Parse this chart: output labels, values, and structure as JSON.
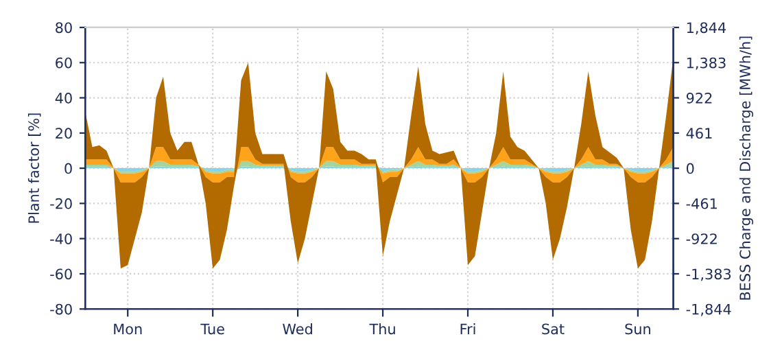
{
  "chart_data": {
    "type": "area",
    "stacked": true,
    "ylabel": "Plant factor [%]",
    "y2label": "BESS Charge and Discharge [MWh/h]",
    "categories": [
      null,
      null,
      null,
      null,
      null,
      null,
      "Mon",
      null,
      null,
      null,
      null,
      null,
      null,
      null,
      null,
      null,
      null,
      null,
      "Tue",
      null,
      null,
      null,
      null,
      null,
      null,
      null,
      null,
      null,
      null,
      null,
      "Wed",
      null,
      null,
      null,
      null,
      null,
      null,
      null,
      null,
      null,
      null,
      null,
      "Thu",
      null,
      null,
      null,
      null,
      null,
      null,
      null,
      null,
      null,
      null,
      null,
      "Fri",
      null,
      null,
      null,
      null,
      null,
      null,
      null,
      null,
      null,
      null,
      null,
      "Sat",
      null,
      null,
      null,
      null,
      null,
      null,
      null,
      null,
      null,
      null,
      null,
      "Sun",
      null,
      null,
      null,
      null,
      null
    ],
    "series": [
      {
        "color": "#87d3e8",
        "values": [
          0.5,
          0.5,
          0.5,
          0.5,
          0,
          -2,
          -2,
          -2,
          -1,
          0,
          1,
          1,
          0.5,
          0.5,
          0.5,
          0.5,
          0.5,
          -1,
          -2,
          -2,
          -1,
          -1,
          1,
          1,
          0.5,
          0.5,
          0.5,
          0.5,
          0.5,
          -1,
          -2,
          -2,
          -1,
          0,
          1,
          1,
          0.5,
          0.5,
          0.5,
          0.5,
          0.5,
          0.5,
          -2,
          -1,
          -1,
          0,
          0.5,
          1,
          0.5,
          0.5,
          0.5,
          0.5,
          0.5,
          0,
          -2,
          -2,
          -1,
          0,
          0.5,
          1,
          0.5,
          0.5,
          0.5,
          0.5,
          0,
          -1,
          -2,
          -2,
          -1,
          0,
          0.5,
          1,
          0.5,
          0.5,
          0.5,
          0.5,
          0,
          -1,
          -2,
          -2,
          -1,
          0,
          0.5,
          1
        ]
      },
      {
        "color": "#a6d49a",
        "values": [
          1.5,
          1.5,
          1.5,
          1.5,
          0,
          -1,
          -1,
          -1,
          -1,
          0,
          3,
          3,
          1.5,
          1.5,
          1.5,
          1.5,
          0.5,
          -1,
          -1,
          -1,
          -1,
          -1,
          3,
          3,
          1.5,
          1,
          1,
          1,
          1,
          -1,
          -1,
          -1,
          -1,
          0,
          3,
          3,
          1.5,
          1.5,
          1.5,
          1,
          1,
          1,
          -1,
          -1,
          -1,
          0,
          1.5,
          3,
          1.5,
          1.5,
          1,
          1,
          1.5,
          0,
          -1,
          -1,
          -1,
          0,
          1.5,
          3,
          1.5,
          1.5,
          1.5,
          1,
          0,
          -1,
          -1,
          -1,
          -1,
          0,
          1.5,
          3,
          1.5,
          1.5,
          1,
          1,
          0,
          -1,
          -1,
          -1,
          -1,
          0,
          1.5,
          3
        ]
      },
      {
        "color": "#ffa31a",
        "values": [
          3,
          3,
          3,
          3,
          0,
          -5,
          -5,
          -5,
          -3,
          0,
          8,
          8,
          3,
          3,
          3,
          3,
          1,
          -3,
          -5,
          -5,
          -3,
          -3,
          8,
          8,
          3,
          1,
          1,
          1,
          1,
          -3,
          -5,
          -5,
          -3,
          0,
          8,
          8,
          3,
          3,
          3,
          1,
          1,
          1,
          -5,
          -3,
          -3,
          0,
          3,
          8,
          3,
          3,
          1,
          1,
          3,
          0,
          -5,
          -5,
          -3,
          0,
          3,
          8,
          3,
          3,
          3,
          1,
          0,
          -3,
          -5,
          -5,
          -3,
          0,
          3,
          8,
          3,
          3,
          1,
          1,
          0,
          -3,
          -5,
          -5,
          -3,
          0,
          3,
          8
        ]
      },
      {
        "color": "#b36b00",
        "values": [
          27,
          7,
          8,
          5,
          0,
          -49,
          -47,
          -32,
          -20,
          0,
          28,
          40,
          15,
          5,
          10,
          10,
          0,
          -15,
          -49,
          -44,
          -30,
          -5,
          38,
          48,
          15,
          5.5,
          5.5,
          5.5,
          5.5,
          -25,
          -46,
          -32,
          -15,
          0,
          43,
          33,
          10,
          5,
          5,
          5.5,
          2.5,
          2.5,
          -42,
          -25,
          -10,
          0,
          25,
          46,
          20,
          5,
          5.5,
          6.5,
          5,
          0,
          -47,
          -42,
          -20,
          0,
          15,
          43,
          13,
          7,
          5,
          2.5,
          0,
          -15,
          -44,
          -32,
          -17,
          0,
          20,
          43,
          25,
          7,
          6.5,
          3.5,
          0,
          -30,
          -49,
          -44,
          -25,
          0,
          25,
          51
        ]
      }
    ],
    "ylim": [
      -80,
      80
    ],
    "yticks": [
      -80,
      -60,
      -40,
      -20,
      0,
      20,
      40,
      60,
      80
    ],
    "y2lim": [
      -1844,
      1844
    ],
    "y2ticks": [
      {
        "value": -1844,
        "label": "-1,844"
      },
      {
        "value": -1383,
        "label": "-1,383"
      },
      {
        "value": -922,
        "label": "-922"
      },
      {
        "value": -461,
        "label": "-461"
      },
      0,
      461,
      922,
      {
        "value": 1383,
        "label": "1,383"
      },
      {
        "value": 1844,
        "label": "1,844"
      }
    ],
    "grid": true
  }
}
